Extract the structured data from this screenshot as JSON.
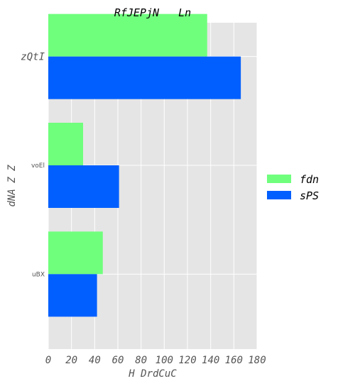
{
  "chart_data": {
    "type": "bar",
    "orientation": "horizontal",
    "title": "RfJEPjN   Ln",
    "xlabel": "H DrdCuC",
    "ylabel": "dNA Z Z",
    "categories": [
      "zQtI",
      "voEl",
      "uBX"
    ],
    "series": [
      {
        "name": "fdn",
        "color": "#70ff7d",
        "values": [
          137,
          30,
          47
        ]
      },
      {
        "name": "sPS",
        "color": "#005ffe",
        "values": [
          166,
          61,
          42
        ]
      }
    ],
    "xlim": [
      0,
      180
    ],
    "xticks": [
      0,
      20,
      40,
      60,
      80,
      100,
      120,
      140,
      160,
      180
    ],
    "grid": true,
    "legend": "right",
    "background": "#e5e5e5",
    "grid_color": "#ffffff"
  }
}
